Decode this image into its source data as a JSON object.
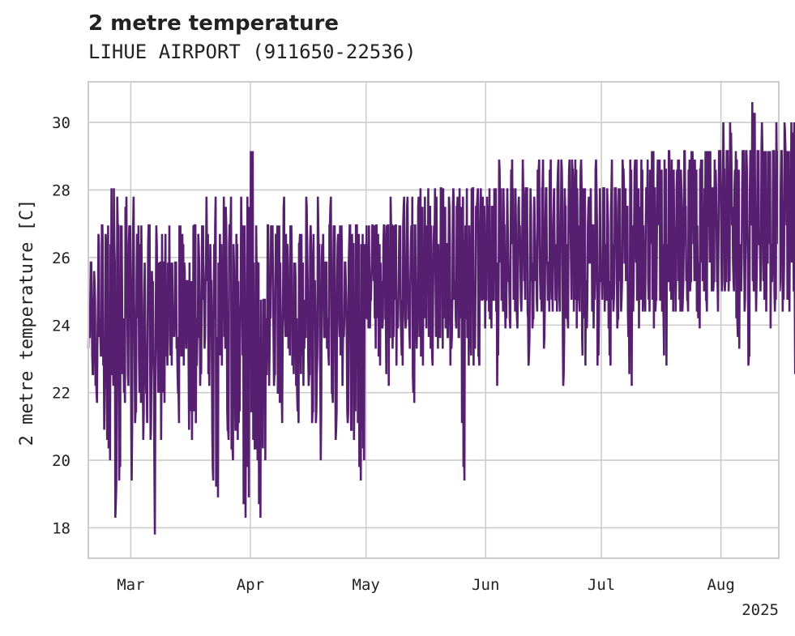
{
  "chart_data": {
    "type": "line",
    "title": "2 metre temperature",
    "subtitle": "LIHUE AIRPORT (911650-22536)",
    "xlabel": "",
    "ylabel": "2 metre temperature [C]",
    "x_range": [
      "2025-02-18",
      "2025-08-16"
    ],
    "ylim": [
      17.1,
      31.2
    ],
    "yticks": [
      18,
      20,
      22,
      24,
      26,
      28,
      30
    ],
    "xticks": [
      {
        "date": "2025-03-01",
        "label": "Mar"
      },
      {
        "date": "2025-04-01",
        "label": "Apr"
      },
      {
        "date": "2025-05-01",
        "label": "May"
      },
      {
        "date": "2025-06-01",
        "label": "Jun"
      },
      {
        "date": "2025-07-01",
        "label": "Jul"
      },
      {
        "date": "2025-08-01",
        "label": "Aug"
      }
    ],
    "year_label": "2025",
    "grid": true,
    "line_color": "#561f6f",
    "series": [
      {
        "sampling": "3-hourly readings",
        "start": "2025-02-18T00:00",
        "end": "2025-08-16T00:00",
        "daily_low": [
          23.3,
          22.2,
          21.7,
          22.8,
          20.6,
          20.0,
          22.2,
          18.3,
          19.4,
          21.7,
          22.2,
          19.4,
          21.1,
          21.7,
          20.6,
          21.1,
          20.6,
          17.8,
          20.6,
          21.7,
          22.8,
          22.8,
          23.3,
          21.1,
          22.8,
          23.3,
          20.6,
          21.1,
          22.8,
          22.2,
          23.3,
          22.2,
          19.4,
          18.9,
          22.8,
          23.3,
          20.6,
          20.0,
          20.6,
          21.1,
          18.3,
          18.9,
          20.6,
          20.0,
          18.3,
          20.0,
          22.2,
          23.3,
          22.2,
          21.7,
          21.1,
          23.3,
          22.8,
          22.2,
          21.1,
          22.2,
          23.3,
          22.2,
          21.1,
          21.1,
          20.0,
          23.3,
          22.8,
          21.7,
          20.6,
          22.2,
          23.3,
          21.1,
          20.6,
          21.1,
          19.4,
          20.0,
          23.9,
          23.9,
          23.3,
          22.8,
          23.9,
          22.2,
          23.3,
          22.8,
          23.9,
          22.8,
          23.9,
          23.3,
          21.7,
          23.3,
          22.8,
          23.9,
          23.3,
          22.8,
          23.3,
          23.3,
          23.9,
          22.8,
          23.3,
          23.9,
          21.1,
          19.4,
          22.8,
          22.8,
          23.3,
          22.8,
          23.9,
          24.4,
          23.9,
          24.4,
          22.2,
          24.4,
          23.9,
          23.9,
          24.4,
          23.9,
          24.4,
          24.4,
          22.8,
          23.9,
          24.4,
          24.4,
          23.3,
          24.4,
          24.4,
          24.4,
          24.4,
          22.2,
          23.9,
          24.4,
          23.9,
          24.4,
          22.8,
          23.9,
          24.4,
          23.9,
          22.8,
          24.4,
          23.9,
          22.8,
          24.4,
          23.9,
          24.4,
          24.4,
          22.2,
          24.4,
          23.9,
          24.4,
          24.4,
          24.4,
          23.9,
          24.4,
          24.4,
          22.8,
          25.0,
          24.4,
          24.4,
          24.4,
          24.4,
          24.4,
          25.0,
          24.4,
          23.9,
          25.0,
          24.4,
          25.0,
          25.0,
          24.4,
          25.0,
          25.0,
          25.0,
          25.0,
          23.3,
          25.0,
          24.4,
          22.8,
          25.0,
          24.4,
          25.0,
          24.4,
          23.9,
          25.0,
          24.4,
          25.0,
          24.4,
          24.4,
          25.0,
          22.2,
          25.0,
          24.4,
          24.4,
          25.0
        ],
        "daily_high": [
          26.1,
          25.6,
          26.7,
          27.2,
          26.7,
          27.2,
          28.3,
          27.8,
          27.2,
          27.8,
          27.2,
          27.8,
          26.7,
          27.2,
          26.1,
          27.2,
          25.6,
          27.2,
          26.1,
          26.7,
          26.7,
          27.2,
          26.1,
          27.2,
          26.7,
          25.6,
          26.1,
          27.2,
          26.7,
          27.2,
          27.8,
          26.7,
          27.2,
          27.8,
          26.7,
          27.8,
          27.2,
          27.8,
          26.7,
          27.8,
          27.2,
          27.8,
          29.4,
          27.2,
          26.1,
          25.0,
          27.2,
          27.2,
          26.7,
          27.2,
          27.8,
          26.7,
          27.2,
          26.1,
          26.7,
          26.7,
          27.8,
          27.2,
          26.7,
          27.8,
          26.7,
          26.1,
          27.8,
          27.2,
          26.7,
          27.2,
          26.1,
          27.2,
          26.7,
          27.2,
          26.7,
          26.7,
          27.2,
          27.2,
          27.2,
          26.7,
          27.2,
          27.2,
          27.8,
          27.2,
          27.2,
          27.8,
          27.8,
          27.2,
          27.8,
          27.8,
          28.3,
          27.8,
          28.3,
          28.3,
          27.8,
          28.3,
          28.3,
          27.8,
          28.3,
          27.8,
          28.3,
          27.8,
          28.3,
          28.3,
          27.8,
          28.3,
          27.8,
          27.8,
          28.3,
          28.3,
          28.9,
          28.3,
          28.3,
          28.9,
          28.3,
          27.8,
          28.9,
          28.3,
          28.3,
          27.8,
          28.9,
          28.9,
          28.3,
          28.9,
          28.3,
          28.9,
          28.9,
          28.3,
          28.9,
          28.9,
          28.9,
          28.9,
          28.3,
          27.8,
          28.3,
          28.9,
          28.3,
          28.3,
          28.3,
          28.9,
          28.3,
          28.3,
          28.9,
          28.3,
          28.9,
          28.9,
          28.9,
          28.9,
          28.3,
          28.9,
          29.4,
          28.9,
          28.9,
          28.9,
          29.4,
          28.9,
          28.9,
          28.9,
          29.4,
          28.9,
          29.4,
          28.9,
          28.9,
          28.9,
          29.4,
          29.4,
          28.9,
          29.4,
          30.0,
          29.4,
          30.0,
          29.4,
          28.9,
          29.4,
          29.4,
          29.4,
          30.6,
          29.4,
          30.0,
          29.4,
          29.4,
          29.4,
          30.0,
          29.4,
          30.0,
          29.4,
          30.0,
          30.0,
          29.4,
          30.0,
          30.0,
          29.4,
          30.0,
          29.4
        ]
      }
    ]
  }
}
